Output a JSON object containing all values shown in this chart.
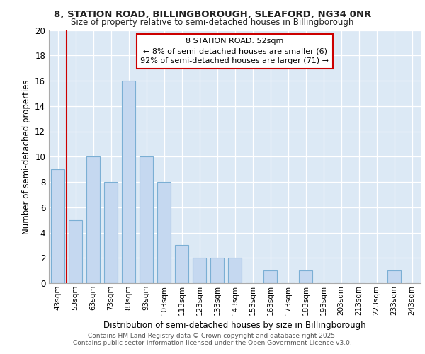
{
  "title_line1": "8, STATION ROAD, BILLINGBOROUGH, SLEAFORD, NG34 0NR",
  "title_line2": "Size of property relative to semi-detached houses in Billingborough",
  "xlabel": "Distribution of semi-detached houses by size in Billingborough",
  "ylabel": "Number of semi-detached properties",
  "footer_line1": "Contains HM Land Registry data © Crown copyright and database right 2025.",
  "footer_line2": "Contains public sector information licensed under the Open Government Licence v3.0.",
  "categories": [
    "43sqm",
    "53sqm",
    "63sqm",
    "73sqm",
    "83sqm",
    "93sqm",
    "103sqm",
    "113sqm",
    "123sqm",
    "133sqm",
    "143sqm",
    "153sqm",
    "163sqm",
    "173sqm",
    "183sqm",
    "193sqm",
    "203sqm",
    "213sqm",
    "223sqm",
    "233sqm",
    "243sqm"
  ],
  "values": [
    9,
    5,
    10,
    8,
    16,
    10,
    8,
    3,
    2,
    2,
    2,
    0,
    1,
    0,
    1,
    0,
    0,
    0,
    0,
    1,
    0
  ],
  "bar_color": "#c5d8f0",
  "bar_edge_color": "#7bafd4",
  "subject_line_color": "#cc0000",
  "annotation_title": "8 STATION ROAD: 52sqm",
  "annotation_line1": "← 8% of semi-detached houses are smaller (6)",
  "annotation_line2": "92% of semi-detached houses are larger (71) →",
  "ylim": [
    0,
    20
  ],
  "yticks": [
    0,
    2,
    4,
    6,
    8,
    10,
    12,
    14,
    16,
    18,
    20
  ],
  "bg_color": "#ffffff",
  "plot_bg": "#dce9f5",
  "grid_color": "#ffffff",
  "bar_width": 0.75
}
